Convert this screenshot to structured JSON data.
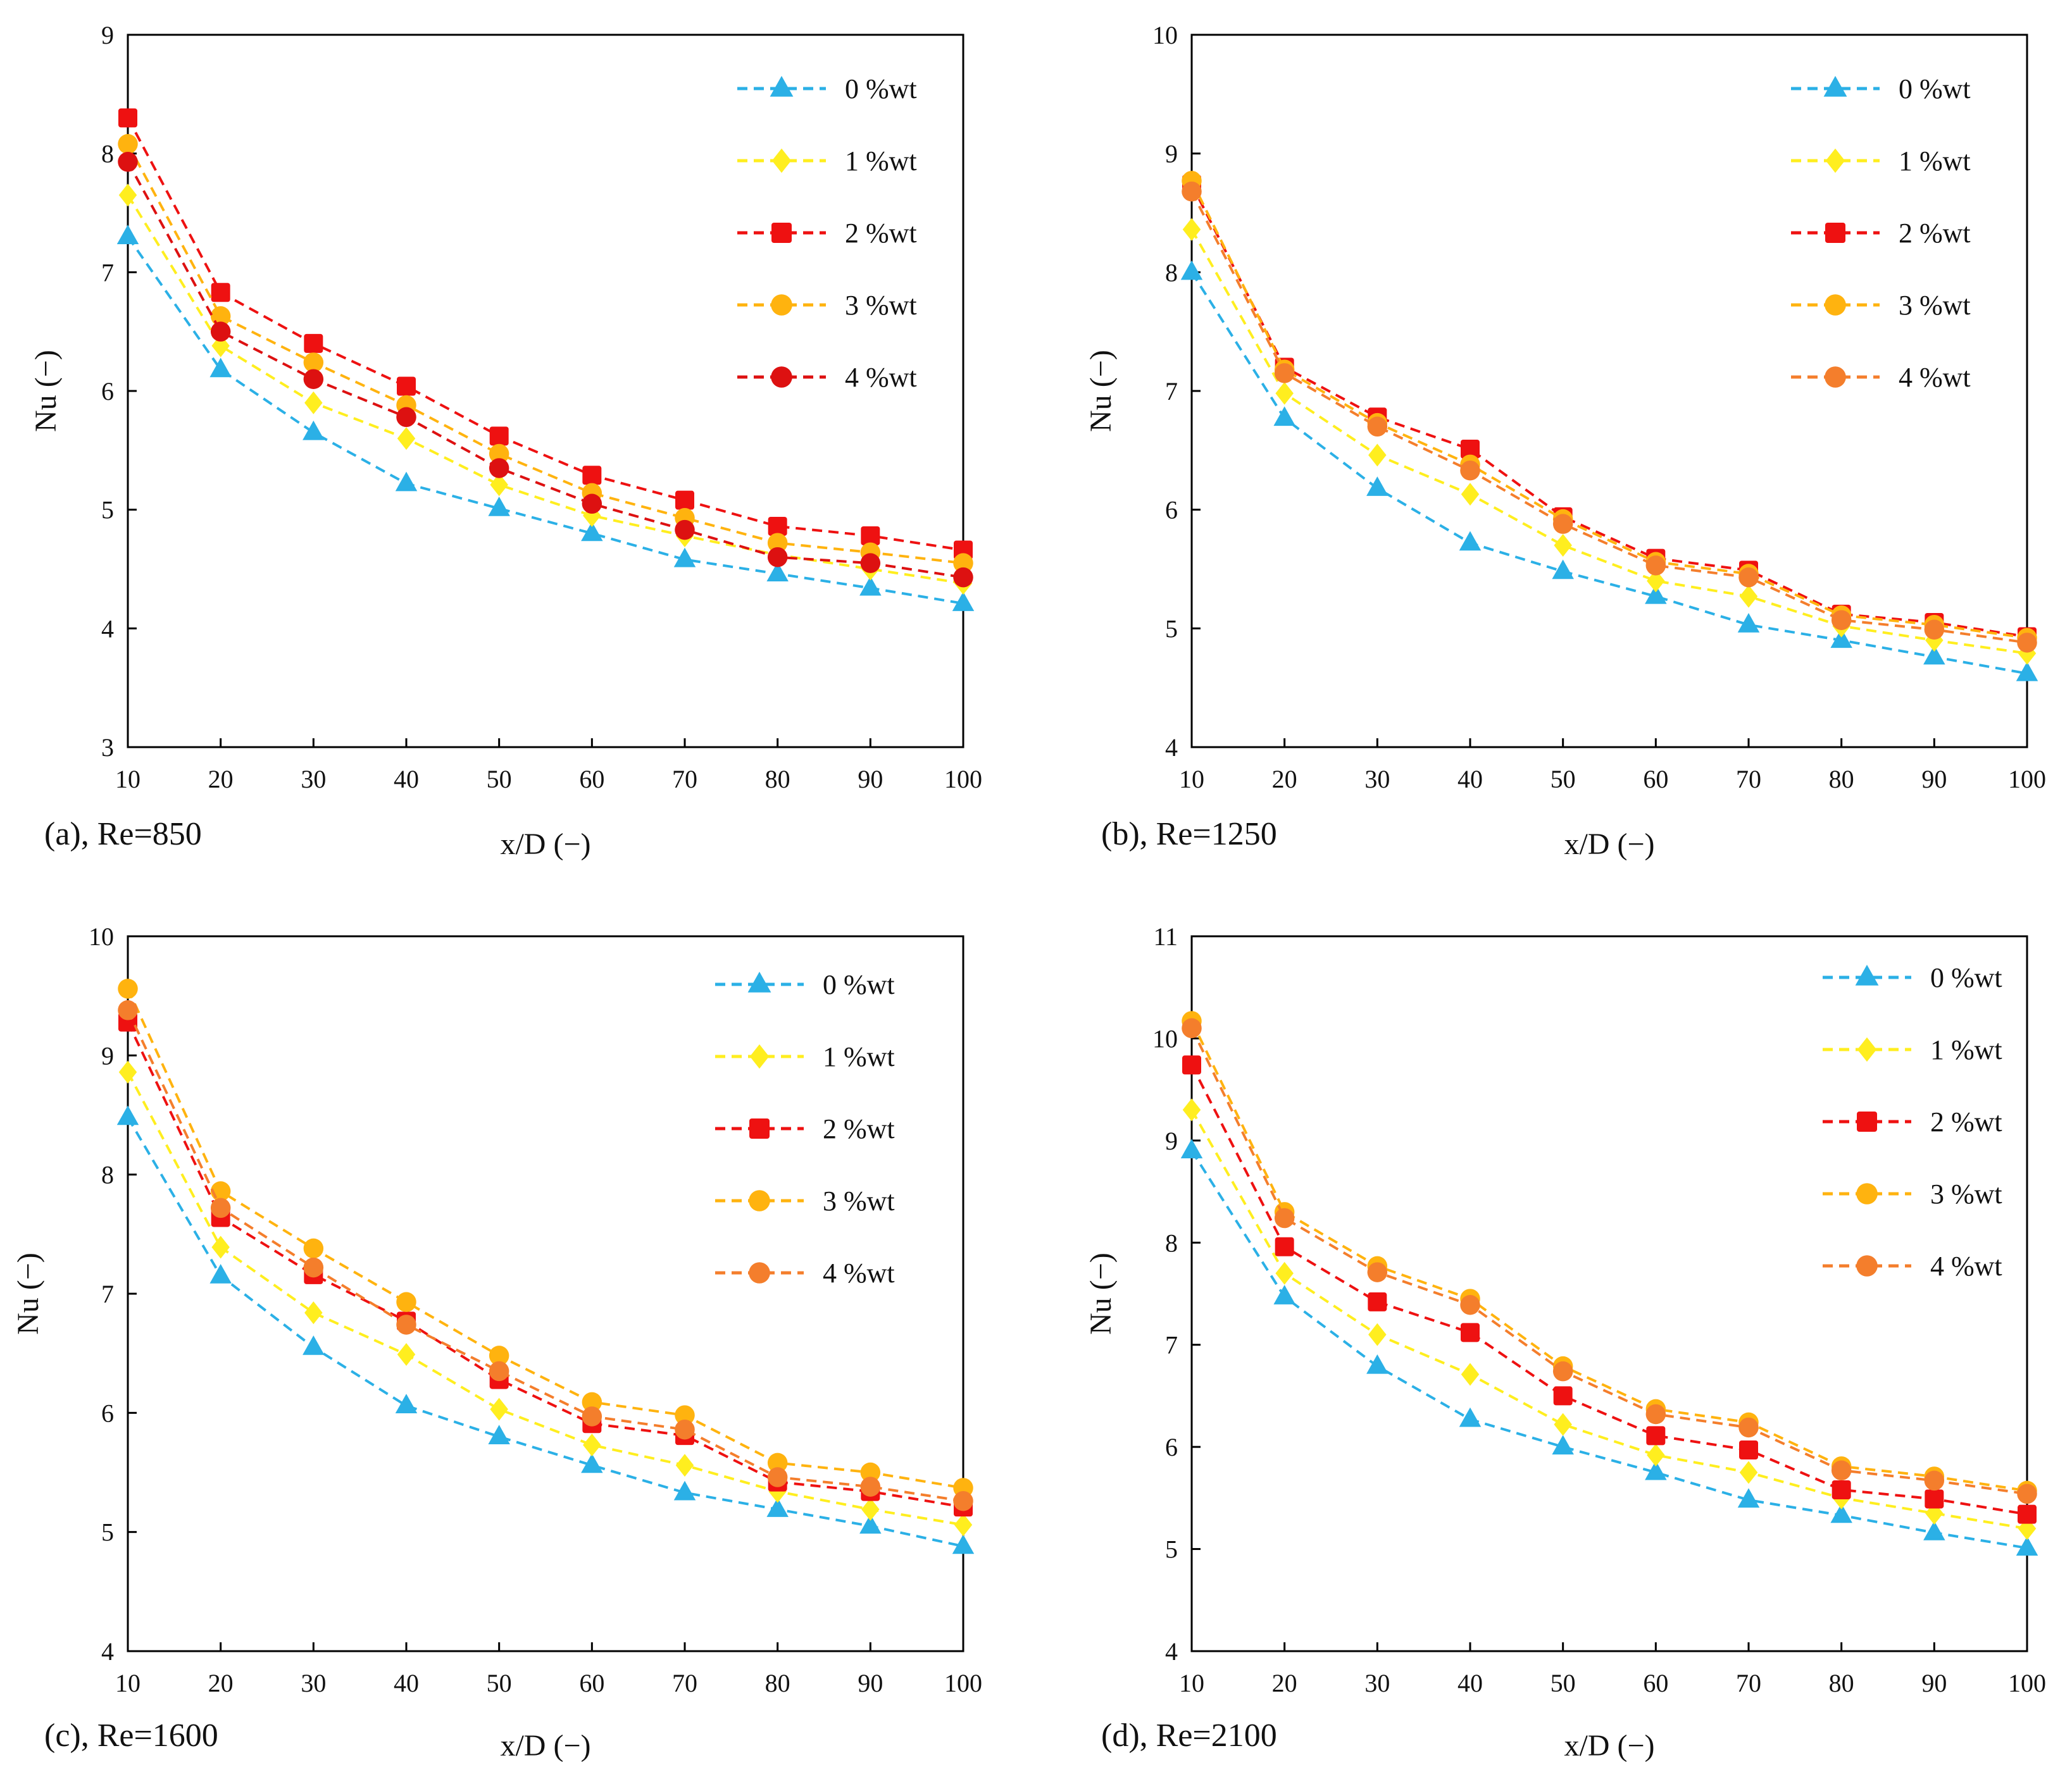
{
  "series_style": [
    {
      "name": "0 %wt",
      "color": "#2BB0E6",
      "marker": "triangle"
    },
    {
      "name": "1 %wt",
      "color": "#FFEE1F",
      "marker": "diamond"
    },
    {
      "name": "2 %wt",
      "color": "#EE1111",
      "marker": "square"
    },
    {
      "name": "3 %wt",
      "color": "#FFB30F",
      "marker": "circle"
    },
    {
      "name": "4 %wt",
      "color": "#F47E2C",
      "marker": "circle"
    }
  ],
  "chart_data": [
    {
      "type": "line",
      "panel_label": "(a), Re=850",
      "xlabel": "x/D (−)",
      "ylabel": "Nu (−)",
      "x": [
        10,
        20,
        30,
        40,
        50,
        60,
        70,
        80,
        90,
        100
      ],
      "xlim": [
        10,
        100
      ],
      "ylim": [
        3,
        9
      ],
      "yticks": [
        3,
        4,
        5,
        6,
        7,
        8,
        9
      ],
      "legend_position": "top-right",
      "series": [
        {
          "name": "0 %wt",
          "color": "#2BB0E6",
          "marker": "triangle",
          "values": [
            7.3,
            6.18,
            5.65,
            5.22,
            5.01,
            4.8,
            4.58,
            4.46,
            4.34,
            4.21
          ]
        },
        {
          "name": "1 %wt",
          "color": "#FFEE1F",
          "marker": "diamond",
          "values": [
            7.65,
            6.38,
            5.9,
            5.6,
            5.21,
            4.95,
            4.78,
            4.62,
            4.5,
            4.38
          ]
        },
        {
          "name": "2 %wt",
          "color": "#EE1111",
          "marker": "square",
          "values": [
            8.3,
            6.83,
            6.4,
            6.04,
            5.62,
            5.29,
            5.08,
            4.86,
            4.78,
            4.66
          ]
        },
        {
          "name": "3 %wt",
          "color": "#FFB30F",
          "marker": "circle",
          "values": [
            8.08,
            6.63,
            6.24,
            5.88,
            5.47,
            5.14,
            4.93,
            4.72,
            4.64,
            4.55
          ]
        },
        {
          "name": "4 %wt",
          "color": "#DD1111",
          "marker": "circle",
          "values": [
            7.93,
            6.5,
            6.1,
            5.78,
            5.35,
            5.05,
            4.83,
            4.6,
            4.55,
            4.43
          ]
        }
      ]
    },
    {
      "type": "line",
      "panel_label": "(b), Re=1250",
      "xlabel": "x/D (−)",
      "ylabel": "Nu (−)",
      "x": [
        10,
        20,
        30,
        40,
        50,
        60,
        70,
        80,
        90,
        100
      ],
      "xlim": [
        10,
        100
      ],
      "ylim": [
        4,
        10
      ],
      "yticks": [
        4,
        5,
        6,
        7,
        8,
        9,
        10
      ],
      "legend_position": "top-right",
      "series": [
        {
          "name": "0 %wt",
          "color": "#2BB0E6",
          "marker": "triangle",
          "values": [
            8.0,
            6.77,
            6.18,
            5.72,
            5.48,
            5.27,
            5.03,
            4.9,
            4.76,
            4.62
          ]
        },
        {
          "name": "1 %wt",
          "color": "#FFEE1F",
          "marker": "diamond",
          "values": [
            8.36,
            6.98,
            6.46,
            6.13,
            5.7,
            5.4,
            5.27,
            5.02,
            4.9,
            4.79
          ]
        },
        {
          "name": "2 %wt",
          "color": "#EE1111",
          "marker": "square",
          "values": [
            8.74,
            7.2,
            6.78,
            6.51,
            5.94,
            5.59,
            5.49,
            5.12,
            5.05,
            4.93
          ]
        },
        {
          "name": "3 %wt",
          "color": "#FFB30F",
          "marker": "circle",
          "values": [
            8.77,
            7.18,
            6.73,
            6.38,
            5.92,
            5.56,
            5.46,
            5.11,
            5.03,
            4.92
          ]
        },
        {
          "name": "4 %wt",
          "color": "#F47E2C",
          "marker": "circle",
          "values": [
            8.68,
            7.15,
            6.7,
            6.33,
            5.88,
            5.53,
            5.43,
            5.07,
            4.99,
            4.88
          ]
        }
      ]
    },
    {
      "type": "line",
      "panel_label": "(c), Re=1600",
      "xlabel": "x/D (−)",
      "ylabel": "Nu (−)",
      "x": [
        10,
        20,
        30,
        40,
        50,
        60,
        70,
        80,
        90,
        100
      ],
      "xlim": [
        10,
        100
      ],
      "ylim": [
        4,
        10
      ],
      "yticks": [
        4,
        5,
        6,
        7,
        8,
        9,
        10
      ],
      "legend_position": "top-right",
      "series": [
        {
          "name": "0 %wt",
          "color": "#2BB0E6",
          "marker": "triangle",
          "values": [
            8.48,
            7.15,
            6.55,
            6.06,
            5.8,
            5.56,
            5.33,
            5.19,
            5.05,
            4.88
          ]
        },
        {
          "name": "1 %wt",
          "color": "#FFEE1F",
          "marker": "diamond",
          "values": [
            8.86,
            7.39,
            6.84,
            6.49,
            6.03,
            5.73,
            5.56,
            5.34,
            5.19,
            5.06
          ]
        },
        {
          "name": "2 %wt",
          "color": "#EE1111",
          "marker": "square",
          "values": [
            9.28,
            7.64,
            7.16,
            6.77,
            6.28,
            5.91,
            5.81,
            5.42,
            5.34,
            5.21
          ]
        },
        {
          "name": "3 %wt",
          "color": "#FFB30F",
          "marker": "circle",
          "values": [
            9.56,
            7.86,
            7.38,
            6.93,
            6.48,
            6.09,
            5.98,
            5.58,
            5.5,
            5.37
          ]
        },
        {
          "name": "4 %wt",
          "color": "#F47E2C",
          "marker": "circle",
          "values": [
            9.38,
            7.72,
            7.22,
            6.74,
            6.35,
            5.97,
            5.86,
            5.46,
            5.38,
            5.26
          ]
        }
      ]
    },
    {
      "type": "line",
      "panel_label": "(d), Re=2100",
      "xlabel": "x/D (−)",
      "ylabel": "Nu (−)",
      "x": [
        10,
        20,
        30,
        40,
        50,
        60,
        70,
        80,
        90,
        100
      ],
      "xlim": [
        10,
        100
      ],
      "ylim": [
        4,
        11
      ],
      "yticks": [
        4,
        5,
        6,
        7,
        8,
        9,
        10,
        11
      ],
      "legend_position": "top-right",
      "series": [
        {
          "name": "0 %wt",
          "color": "#2BB0E6",
          "marker": "triangle",
          "values": [
            8.9,
            7.47,
            6.79,
            6.27,
            6.0,
            5.75,
            5.48,
            5.33,
            5.16,
            5.01
          ]
        },
        {
          "name": "1 %wt",
          "color": "#FFEE1F",
          "marker": "diamond",
          "values": [
            9.3,
            7.7,
            7.1,
            6.71,
            6.22,
            5.92,
            5.75,
            5.5,
            5.35,
            5.2
          ]
        },
        {
          "name": "2 %wt",
          "color": "#EE1111",
          "marker": "square",
          "values": [
            9.74,
            7.96,
            7.42,
            7.12,
            6.5,
            6.11,
            5.97,
            5.58,
            5.49,
            5.34
          ]
        },
        {
          "name": "3 %wt",
          "color": "#FFB30F",
          "marker": "circle",
          "values": [
            10.17,
            8.3,
            7.77,
            7.45,
            6.79,
            6.37,
            6.24,
            5.81,
            5.71,
            5.57
          ]
        },
        {
          "name": "4 %wt",
          "color": "#F47E2C",
          "marker": "circle",
          "values": [
            10.1,
            8.24,
            7.71,
            7.39,
            6.74,
            6.32,
            6.19,
            5.77,
            5.67,
            5.54
          ]
        }
      ]
    }
  ]
}
